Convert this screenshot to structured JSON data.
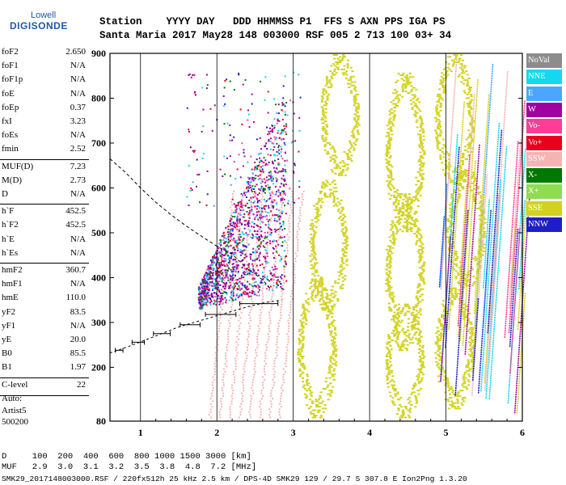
{
  "logo": {
    "line1": "Lowell",
    "line2": "DIGISONDE"
  },
  "header": {
    "row1": "Station    YYYY DAY   DDD HHMMSS P1  FFS S AXN PPS IGA PS",
    "row2": "Santa Maria 2017 May28 148 003000 RSF 005 2 713 100 03+ 34"
  },
  "params": [
    {
      "label": "foF2",
      "value": "2.650"
    },
    {
      "label": "foF1",
      "value": "N/A"
    },
    {
      "label": "foF1p",
      "value": "N/A"
    },
    {
      "label": "foE",
      "value": "N/A"
    },
    {
      "label": "foEp",
      "value": "0.37"
    },
    {
      "label": "fxI",
      "value": "3.23"
    },
    {
      "label": "foEs",
      "value": "N/A"
    },
    {
      "label": "fmin",
      "value": "2.52"
    },
    {
      "label": "MUF(D)",
      "value": "7.23"
    },
    {
      "label": "M(D)",
      "value": "2.73"
    },
    {
      "label": "D",
      "value": "N/A"
    },
    {
      "label": "h`F",
      "value": "452.5"
    },
    {
      "label": "h`F2",
      "value": "452.5"
    },
    {
      "label": "h`E",
      "value": "N/A"
    },
    {
      "label": "h`Es",
      "value": "N/A"
    },
    {
      "label": "hmF2",
      "value": "360.7"
    },
    {
      "label": "hmF1",
      "value": "N/A"
    },
    {
      "label": "hmE",
      "value": "110.0"
    },
    {
      "label": "yF2",
      "value": "83.5"
    },
    {
      "label": "yF1",
      "value": "N/A"
    },
    {
      "label": "yE",
      "value": "20.0"
    },
    {
      "label": "B0",
      "value": "85.5"
    },
    {
      "label": "B1",
      "value": "1.97"
    },
    {
      "label": "C-level",
      "value": "22"
    }
  ],
  "auto": {
    "line1": "Auto:",
    "line2": "Artist5",
    "line3": "500200"
  },
  "legend": [
    {
      "label": "NoVal",
      "color": "#8c8c8c"
    },
    {
      "label": "NNE",
      "color": "#16d7f0"
    },
    {
      "label": "E",
      "color": "#4aa6ff"
    },
    {
      "label": "W",
      "color": "#a000a0"
    },
    {
      "label": "Vo-",
      "color": "#ff3c96"
    },
    {
      "label": "Vo+",
      "color": "#e8001e"
    },
    {
      "label": "SSW",
      "color": "#f5b4b4"
    },
    {
      "label": "X-",
      "color": "#007800"
    },
    {
      "label": "X+",
      "color": "#90dc50"
    },
    {
      "label": "SSE",
      "color": "#d2d21e"
    },
    {
      "label": "NNW",
      "color": "#1e1ec8"
    }
  ],
  "chart_data": {
    "type": "scatter",
    "xlim": [
      0.6,
      6
    ],
    "ylim": [
      80,
      900
    ],
    "x_ticks": [
      "1",
      "2",
      "3",
      "4",
      "5",
      "6"
    ],
    "y_ticks": [
      "80",
      "200",
      "300",
      "400",
      "500",
      "600",
      "700",
      "800",
      "900"
    ]
  },
  "footer": {
    "row1": "D     100  200  400  600  800 1000 1500 3000 [km]",
    "row2": "MUF   2.9  3.0  3.1  3.2  3.5  3.8  4.8  7.2 [MHz]",
    "row3": "SMK29_2017148003000.RSF / 220fx512h 25 kHz 2.5 km / DPS-4D SMK29 129 / 29.7 S 307.8 E Ion2Png 1.3.20"
  }
}
